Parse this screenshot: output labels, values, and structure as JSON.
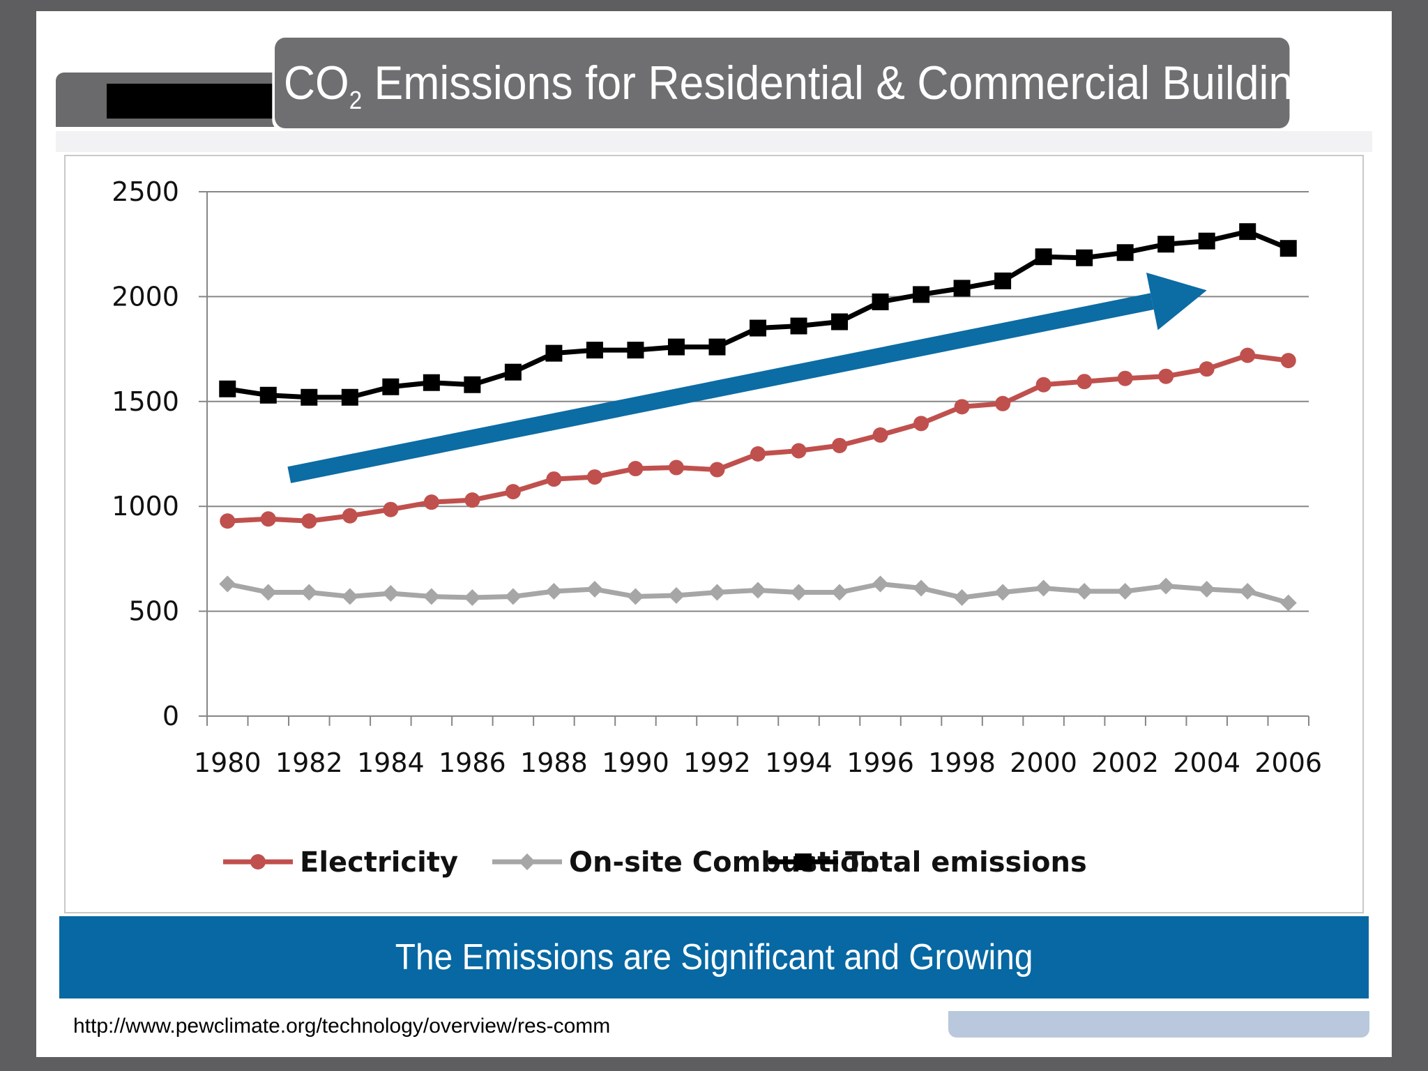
{
  "slide": {
    "title_main": "CO",
    "title_sub": "2",
    "title_rest": " Emissions for Residential & Commercial Buildings",
    "banner": "The Emissions are Significant and Growing",
    "source_url": "http://www.pewclimate.org/technology/overview/res-comm"
  },
  "chart_data": {
    "type": "line",
    "categories": [
      "1980",
      "1981",
      "1982",
      "1983",
      "1984",
      "1985",
      "1986",
      "1987",
      "1988",
      "1989",
      "1990",
      "1991",
      "1992",
      "1993",
      "1994",
      "1995",
      "1996",
      "1997",
      "1998",
      "1999",
      "2000",
      "2001",
      "2002",
      "2003",
      "2004",
      "2005",
      "2006"
    ],
    "tick_labels": [
      "1980",
      "1982",
      "1984",
      "1986",
      "1988",
      "1990",
      "1992",
      "1994",
      "1996",
      "1998",
      "2000",
      "2002",
      "2004",
      "2006"
    ],
    "ylim": [
      0,
      2500
    ],
    "yticks": [
      0,
      500,
      1000,
      1500,
      2000,
      2500
    ],
    "grid": true,
    "legend": "bottom",
    "series": [
      {
        "name": "Electricity",
        "color": "#c0504d",
        "marker": "circle",
        "values": [
          930,
          940,
          930,
          955,
          985,
          1020,
          1030,
          1070,
          1130,
          1140,
          1180,
          1185,
          1175,
          1250,
          1265,
          1290,
          1340,
          1395,
          1475,
          1490,
          1580,
          1595,
          1610,
          1620,
          1655,
          1720,
          1695
        ]
      },
      {
        "name": "On-site Combustion",
        "color": "#a6a6a6",
        "marker": "diamond",
        "values": [
          630,
          590,
          590,
          570,
          585,
          570,
          565,
          570,
          595,
          605,
          570,
          575,
          590,
          600,
          590,
          590,
          630,
          610,
          565,
          590,
          610,
          595,
          595,
          620,
          605,
          595,
          540
        ]
      },
      {
        "name": "Total emissions",
        "color": "#000000",
        "marker": "square",
        "values": [
          1560,
          1530,
          1520,
          1520,
          1570,
          1590,
          1580,
          1640,
          1730,
          1745,
          1745,
          1760,
          1760,
          1850,
          1860,
          1880,
          1975,
          2010,
          2040,
          2075,
          2190,
          2185,
          2210,
          2250,
          2265,
          2310,
          2230
        ]
      }
    ],
    "annotation": {
      "type": "trend-arrow",
      "color": "#0c6ca4",
      "from": [
        "1981",
        1150
      ],
      "to": [
        "2004",
        2030
      ]
    }
  }
}
